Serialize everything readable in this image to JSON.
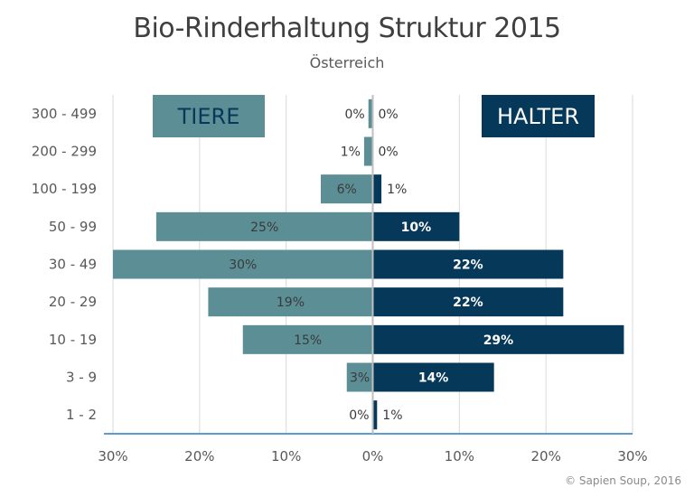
{
  "title": "Bio-Rinderhaltung Struktur 2015",
  "subtitle": "Österreich",
  "copyright": "© Sapien Soup, 2016",
  "colors": {
    "tiere": "#5b8f95",
    "halter": "#063859",
    "axis": "#5b9bd5",
    "grid": "#d9d9d9",
    "center": "#bfbfbf"
  },
  "chart_data": {
    "type": "bar",
    "orientation": "horizontal",
    "layout": "diverging",
    "title": "Bio-Rinderhaltung Struktur 2015",
    "subtitle": "Österreich",
    "categories": [
      "300 - 499",
      "200 - 299",
      "100 - 199",
      "50 - 99",
      "30 - 49",
      "20 - 29",
      "10 - 19",
      "3 - 9",
      "1 - 2"
    ],
    "series": [
      {
        "name": "TIERE",
        "side": "left",
        "values": [
          0.5,
          1,
          6,
          25,
          30,
          19,
          15,
          3,
          0
        ],
        "labels": [
          "0%",
          "1%",
          "6%",
          "25%",
          "30%",
          "19%",
          "15%",
          "3%",
          "0%"
        ]
      },
      {
        "name": "HALTER",
        "side": "right",
        "values": [
          0,
          0,
          1,
          10,
          22,
          22,
          29,
          14,
          0.5
        ],
        "labels": [
          "0%",
          "0%",
          "1%",
          "10%",
          "22%",
          "22%",
          "29%",
          "14%",
          "1%"
        ]
      }
    ],
    "x_ticks": [
      "30%",
      "20%",
      "10%",
      "0%",
      "10%",
      "20%",
      "30%"
    ],
    "xlim": [
      -30,
      30
    ],
    "grid": true,
    "legend": "top"
  }
}
